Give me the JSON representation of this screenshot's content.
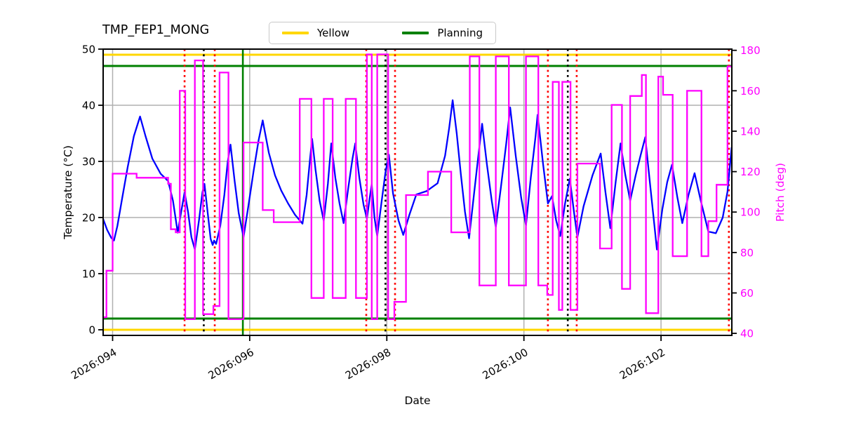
{
  "title": "TMP_FEP1_MONG",
  "legend": {
    "entries": [
      {
        "label": "Yellow",
        "color": "#ffd700"
      },
      {
        "label": "Planning",
        "color": "#008000"
      }
    ]
  },
  "axes": {
    "x_label": "Date",
    "y_left_label": "Temperature (°C)",
    "y_right_label": "Pitch (deg)"
  },
  "colors": {
    "temperature": "#0000ff",
    "pitch": "#ff00ff",
    "yellow_limit": "#ffd700",
    "planning_limit": "#008000",
    "red_event": "#ff0000",
    "black_event": "#000000",
    "grid": "#b0b0b0",
    "spine": "#000000",
    "right_tick_label": "#ff00ff"
  },
  "chart_data": {
    "type": "line",
    "title": "TMP_FEP1_MONG",
    "xlabel": "Date",
    "ylabel_left": "Temperature (°C)",
    "ylabel_right": "Pitch (deg)",
    "grid": true,
    "legend_position": "top-center-outside",
    "xlim": [
      93.862,
      103.033
    ],
    "ylim_left": [
      -1,
      50
    ],
    "ylim_right": [
      39,
      180.6
    ],
    "x_ticks": {
      "values": [
        94,
        96,
        98,
        100,
        102
      ],
      "labels": [
        "2026:094",
        "2026:096",
        "2026:098",
        "2026:100",
        "2026:102"
      ],
      "rotation_deg": 30
    },
    "y_left_ticks": [
      0,
      10,
      20,
      30,
      40,
      50
    ],
    "y_right_ticks": [
      40,
      60,
      80,
      100,
      120,
      140,
      160,
      180
    ],
    "series": [
      {
        "name": "temperature",
        "axis": "left",
        "color": "#0000ff",
        "style": "solid",
        "points": [
          [
            93.86,
            19.8
          ],
          [
            93.92,
            17.8
          ],
          [
            93.98,
            16.4
          ],
          [
            94.02,
            15.9
          ],
          [
            94.07,
            18.5
          ],
          [
            94.14,
            23.5
          ],
          [
            94.22,
            29.0
          ],
          [
            94.31,
            34.5
          ],
          [
            94.4,
            38.0
          ],
          [
            94.48,
            34.5
          ],
          [
            94.58,
            30.5
          ],
          [
            94.7,
            27.8
          ],
          [
            94.81,
            26.5
          ],
          [
            94.88,
            23.0
          ],
          [
            94.95,
            17.3
          ],
          [
            95.0,
            21.0
          ],
          [
            95.05,
            24.5
          ],
          [
            95.1,
            21.0
          ],
          [
            95.15,
            16.5
          ],
          [
            95.2,
            14.3
          ],
          [
            95.26,
            19.5
          ],
          [
            95.31,
            24.5
          ],
          [
            95.34,
            26.0
          ],
          [
            95.39,
            20.5
          ],
          [
            95.43,
            16.2
          ],
          [
            95.46,
            15.1
          ],
          [
            95.48,
            15.9
          ],
          [
            95.51,
            15.3
          ],
          [
            95.57,
            18.5
          ],
          [
            95.63,
            24.0
          ],
          [
            95.68,
            30.0
          ],
          [
            95.72,
            33.0
          ],
          [
            95.78,
            26.5
          ],
          [
            95.84,
            20.8
          ],
          [
            95.91,
            16.5
          ],
          [
            95.98,
            22.0
          ],
          [
            96.06,
            28.5
          ],
          [
            96.13,
            33.8
          ],
          [
            96.19,
            37.3
          ],
          [
            96.28,
            31.5
          ],
          [
            96.37,
            27.5
          ],
          [
            96.46,
            24.8
          ],
          [
            96.56,
            22.5
          ],
          [
            96.66,
            20.5
          ],
          [
            96.77,
            18.9
          ],
          [
            96.83,
            24.0
          ],
          [
            96.88,
            30.5
          ],
          [
            96.91,
            34.0
          ],
          [
            96.96,
            28.5
          ],
          [
            97.02,
            23.0
          ],
          [
            97.08,
            19.4
          ],
          [
            97.14,
            26.0
          ],
          [
            97.19,
            33.2
          ],
          [
            97.25,
            27.0
          ],
          [
            97.31,
            22.5
          ],
          [
            97.37,
            19.0
          ],
          [
            97.44,
            25.5
          ],
          [
            97.5,
            30.5
          ],
          [
            97.54,
            33.2
          ],
          [
            97.6,
            27.0
          ],
          [
            97.66,
            22.3
          ],
          [
            97.71,
            19.8
          ],
          [
            97.75,
            23.5
          ],
          [
            97.78,
            25.9
          ],
          [
            97.82,
            20.0
          ],
          [
            97.86,
            16.7
          ],
          [
            97.92,
            22.5
          ],
          [
            97.98,
            28.0
          ],
          [
            98.03,
            31.2
          ],
          [
            98.09,
            24.3
          ],
          [
            98.17,
            19.5
          ],
          [
            98.24,
            16.9
          ],
          [
            98.33,
            20.5
          ],
          [
            98.43,
            24.1
          ],
          [
            98.58,
            24.7
          ],
          [
            98.74,
            26.1
          ],
          [
            98.85,
            31.0
          ],
          [
            98.91,
            36.0
          ],
          [
            98.96,
            40.9
          ],
          [
            99.02,
            35.0
          ],
          [
            99.08,
            27.7
          ],
          [
            99.14,
            21.0
          ],
          [
            99.2,
            16.3
          ],
          [
            99.27,
            24.0
          ],
          [
            99.34,
            31.5
          ],
          [
            99.39,
            36.7
          ],
          [
            99.46,
            29.5
          ],
          [
            99.53,
            23.0
          ],
          [
            99.59,
            18.3
          ],
          [
            99.66,
            25.0
          ],
          [
            99.74,
            33.0
          ],
          [
            99.8,
            39.6
          ],
          [
            99.88,
            31.0
          ],
          [
            99.96,
            23.5
          ],
          [
            100.03,
            18.6
          ],
          [
            100.1,
            27.0
          ],
          [
            100.17,
            34.5
          ],
          [
            100.2,
            38.3
          ],
          [
            100.28,
            29.5
          ],
          [
            100.35,
            22.5
          ],
          [
            100.41,
            23.8
          ],
          [
            100.47,
            19.5
          ],
          [
            100.53,
            16.7
          ],
          [
            100.6,
            22.5
          ],
          [
            100.67,
            26.9
          ],
          [
            100.73,
            21.0
          ],
          [
            100.78,
            16.5
          ],
          [
            100.87,
            22.0
          ],
          [
            101.0,
            27.5
          ],
          [
            101.12,
            31.4
          ],
          [
            101.19,
            24.5
          ],
          [
            101.26,
            18.1
          ],
          [
            101.34,
            26.5
          ],
          [
            101.41,
            33.2
          ],
          [
            101.48,
            27.5
          ],
          [
            101.55,
            23.0
          ],
          [
            101.63,
            27.5
          ],
          [
            101.7,
            31.0
          ],
          [
            101.77,
            34.3
          ],
          [
            101.84,
            26.0
          ],
          [
            101.9,
            19.0
          ],
          [
            101.94,
            14.3
          ],
          [
            102.02,
            21.5
          ],
          [
            102.09,
            26.3
          ],
          [
            102.16,
            29.4
          ],
          [
            102.24,
            23.5
          ],
          [
            102.31,
            19.0
          ],
          [
            102.4,
            24.0
          ],
          [
            102.49,
            27.9
          ],
          [
            102.58,
            23.0
          ],
          [
            102.69,
            17.5
          ],
          [
            102.8,
            17.2
          ],
          [
            102.9,
            20.0
          ],
          [
            102.97,
            24.6
          ],
          [
            103.03,
            32.5
          ]
        ]
      },
      {
        "name": "pitch",
        "axis": "right",
        "color": "#ff00ff",
        "style": "step-post",
        "points": [
          [
            93.86,
            48
          ],
          [
            93.91,
            71
          ],
          [
            94.0,
            119
          ],
          [
            94.35,
            117
          ],
          [
            94.81,
            114
          ],
          [
            94.85,
            91.5
          ],
          [
            94.92,
            90
          ],
          [
            94.98,
            160
          ],
          [
            95.06,
            47
          ],
          [
            95.2,
            175
          ],
          [
            95.32,
            49.5
          ],
          [
            95.47,
            53.5
          ],
          [
            95.56,
            169
          ],
          [
            95.69,
            47
          ],
          [
            95.91,
            134.4
          ],
          [
            96.19,
            101
          ],
          [
            96.35,
            95
          ],
          [
            96.73,
            156
          ],
          [
            96.9,
            57.5
          ],
          [
            97.08,
            156
          ],
          [
            97.21,
            57.5
          ],
          [
            97.4,
            156
          ],
          [
            97.55,
            57.5
          ],
          [
            97.71,
            178
          ],
          [
            97.78,
            47
          ],
          [
            97.86,
            178
          ],
          [
            98.02,
            47
          ],
          [
            98.11,
            55.6
          ],
          [
            98.28,
            108.4
          ],
          [
            98.6,
            120
          ],
          [
            98.94,
            90
          ],
          [
            99.21,
            177
          ],
          [
            99.35,
            63.7
          ],
          [
            99.59,
            177
          ],
          [
            99.78,
            63.7
          ],
          [
            100.03,
            177
          ],
          [
            100.21,
            63.7
          ],
          [
            100.34,
            59
          ],
          [
            100.42,
            164.4
          ],
          [
            100.51,
            51.6
          ],
          [
            100.56,
            164.4
          ],
          [
            100.68,
            51.6
          ],
          [
            100.78,
            124
          ],
          [
            101.11,
            82
          ],
          [
            101.28,
            153
          ],
          [
            101.43,
            62
          ],
          [
            101.55,
            157.4
          ],
          [
            101.72,
            167.8
          ],
          [
            101.78,
            50
          ],
          [
            101.96,
            167
          ],
          [
            102.03,
            158
          ],
          [
            102.17,
            78.2
          ],
          [
            102.38,
            160
          ],
          [
            102.59,
            78.2
          ],
          [
            102.69,
            95.5
          ],
          [
            102.81,
            113.5
          ],
          [
            102.97,
            172
          ]
        ]
      }
    ],
    "hlines": [
      {
        "y": 49,
        "axis": "left",
        "color": "#ffd700",
        "style": "solid",
        "label": "Yellow"
      },
      {
        "y": 0,
        "axis": "left",
        "color": "#ffd700",
        "style": "solid",
        "label": "Yellow"
      },
      {
        "y": 47,
        "axis": "left",
        "color": "#008000",
        "style": "solid",
        "label": "Planning"
      },
      {
        "y": 2,
        "axis": "left",
        "color": "#008000",
        "style": "solid",
        "label": "Planning"
      }
    ],
    "vlines": [
      {
        "x": 95.05,
        "color": "#ff0000",
        "style": "dotted"
      },
      {
        "x": 95.33,
        "color": "#000000",
        "style": "dotted"
      },
      {
        "x": 95.49,
        "color": "#ff0000",
        "style": "dotted"
      },
      {
        "x": 95.9,
        "color": "#008000",
        "style": "solid"
      },
      {
        "x": 97.7,
        "color": "#ff0000",
        "style": "dotted"
      },
      {
        "x": 97.98,
        "color": "#000000",
        "style": "dotted"
      },
      {
        "x": 98.12,
        "color": "#ff0000",
        "style": "dotted"
      },
      {
        "x": 100.35,
        "color": "#ff0000",
        "style": "dotted"
      },
      {
        "x": 100.64,
        "color": "#000000",
        "style": "dotted"
      },
      {
        "x": 100.77,
        "color": "#ff0000",
        "style": "dotted"
      },
      {
        "x": 102.99,
        "color": "#ff0000",
        "style": "dotted"
      }
    ]
  }
}
